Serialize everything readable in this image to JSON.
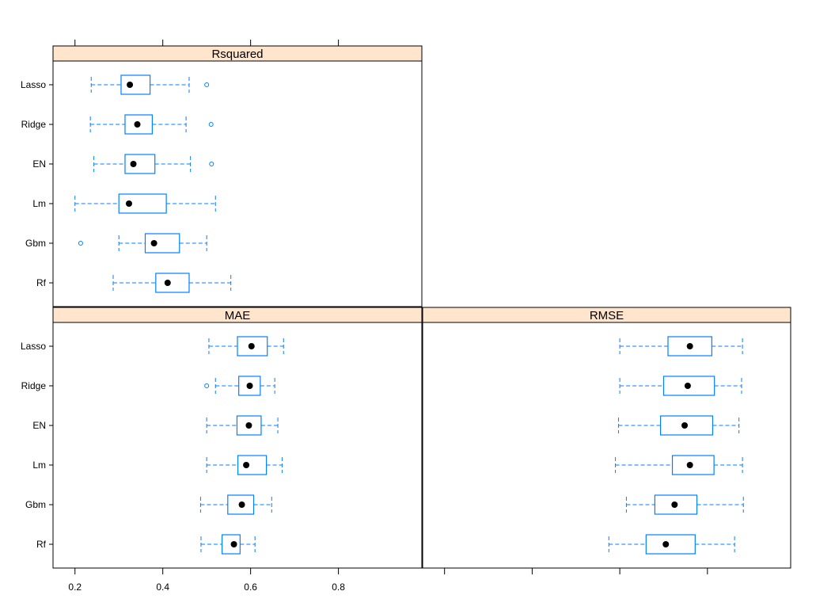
{
  "chart_data": {
    "type": "boxplot",
    "categories": [
      "Lasso",
      "Ridge",
      "EN",
      "Lm",
      "Gbm",
      "Rf"
    ],
    "panels": [
      {
        "name": "Rsquared",
        "xlim": [
          0.15,
          0.99
        ],
        "ticks": [
          0.2,
          0.4,
          0.6,
          0.8
        ],
        "tick_labels": [],
        "boxes": [
          {
            "model": "Lasso",
            "min": 0.237,
            "q1": 0.305,
            "median": 0.325,
            "q3": 0.371,
            "max": 0.46,
            "outliers": [
              0.5
            ]
          },
          {
            "model": "Ridge",
            "min": 0.235,
            "q1": 0.314,
            "median": 0.342,
            "q3": 0.376,
            "max": 0.453,
            "outliers": [
              0.51
            ]
          },
          {
            "model": "EN",
            "min": 0.243,
            "q1": 0.314,
            "median": 0.333,
            "q3": 0.382,
            "max": 0.463,
            "outliers": [
              0.511
            ]
          },
          {
            "model": "Lm",
            "min": 0.2,
            "q1": 0.3,
            "median": 0.323,
            "q3": 0.408,
            "max": 0.52,
            "outliers": []
          },
          {
            "model": "Gbm",
            "min": 0.3,
            "q1": 0.36,
            "median": 0.38,
            "q3": 0.438,
            "max": 0.5,
            "outliers": [
              0.213
            ]
          },
          {
            "model": "Rf",
            "min": 0.287,
            "q1": 0.384,
            "median": 0.411,
            "q3": 0.46,
            "max": 0.555,
            "outliers": []
          }
        ]
      },
      {
        "name": "MAE",
        "xlim": [
          0.15,
          0.99
        ],
        "ticks": [
          0.2,
          0.4,
          0.6,
          0.8
        ],
        "tick_labels": [
          "0.2",
          "0.4",
          "0.6",
          "0.8"
        ],
        "boxes": [
          {
            "model": "Lasso",
            "min": 0.505,
            "q1": 0.57,
            "median": 0.602,
            "q3": 0.638,
            "max": 0.675,
            "outliers": []
          },
          {
            "model": "Ridge",
            "min": 0.52,
            "q1": 0.573,
            "median": 0.598,
            "q3": 0.622,
            "max": 0.655,
            "outliers": [
              0.5
            ]
          },
          {
            "model": "EN",
            "min": 0.5,
            "q1": 0.569,
            "median": 0.596,
            "q3": 0.624,
            "max": 0.662,
            "outliers": []
          },
          {
            "model": "Lm",
            "min": 0.5,
            "q1": 0.571,
            "median": 0.59,
            "q3": 0.636,
            "max": 0.672,
            "outliers": []
          },
          {
            "model": "Gbm",
            "min": 0.486,
            "q1": 0.548,
            "median": 0.58,
            "q3": 0.607,
            "max": 0.648,
            "outliers": []
          },
          {
            "model": "Rf",
            "min": 0.487,
            "q1": 0.535,
            "median": 0.562,
            "q3": 0.576,
            "max": 0.61,
            "outliers": []
          }
        ]
      },
      {
        "name": "RMSE",
        "xlim": [
          0.15,
          0.99
        ],
        "ticks": [
          0.2,
          0.4,
          0.6,
          0.8
        ],
        "tick_labels": [],
        "boxes": [
          {
            "model": "Lasso",
            "min": 0.6,
            "q1": 0.71,
            "median": 0.76,
            "q3": 0.81,
            "max": 0.88,
            "outliers": []
          },
          {
            "model": "Ridge",
            "min": 0.6,
            "q1": 0.7,
            "median": 0.755,
            "q3": 0.816,
            "max": 0.878,
            "outliers": []
          },
          {
            "model": "EN",
            "min": 0.597,
            "q1": 0.693,
            "median": 0.748,
            "q3": 0.812,
            "max": 0.872,
            "outliers": []
          },
          {
            "model": "Lm",
            "min": 0.59,
            "q1": 0.72,
            "median": 0.76,
            "q3": 0.815,
            "max": 0.88,
            "outliers": []
          },
          {
            "model": "Gbm",
            "min": 0.615,
            "q1": 0.68,
            "median": 0.725,
            "q3": 0.776,
            "max": 0.882,
            "outliers": []
          },
          {
            "model": "Rf",
            "min": 0.575,
            "q1": 0.66,
            "median": 0.705,
            "q3": 0.772,
            "max": 0.862,
            "outliers": []
          }
        ]
      }
    ],
    "box_color": "#0080ff",
    "median_color": "#000000",
    "strip_color": "#ffe5cc",
    "grid": false
  }
}
